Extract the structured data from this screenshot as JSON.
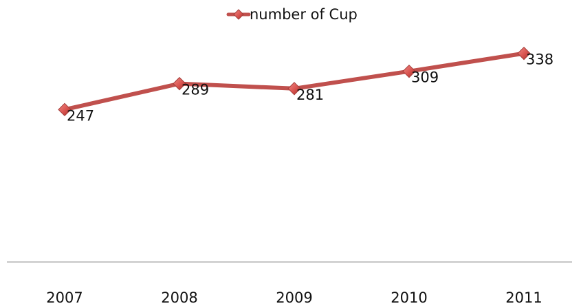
{
  "chart_data": {
    "type": "line",
    "categories": [
      "2007",
      "2008",
      "2009",
      "2010",
      "2011"
    ],
    "series": [
      {
        "name": "number of Cup",
        "values": [
          247,
          289,
          281,
          309,
          338
        ],
        "color": "#c0504d",
        "marker": "diamond"
      }
    ],
    "title": "",
    "xlabel": "",
    "ylabel": "",
    "ylim": [
      0,
      400
    ],
    "grid": false,
    "legend_position": "top",
    "data_labels": true
  }
}
